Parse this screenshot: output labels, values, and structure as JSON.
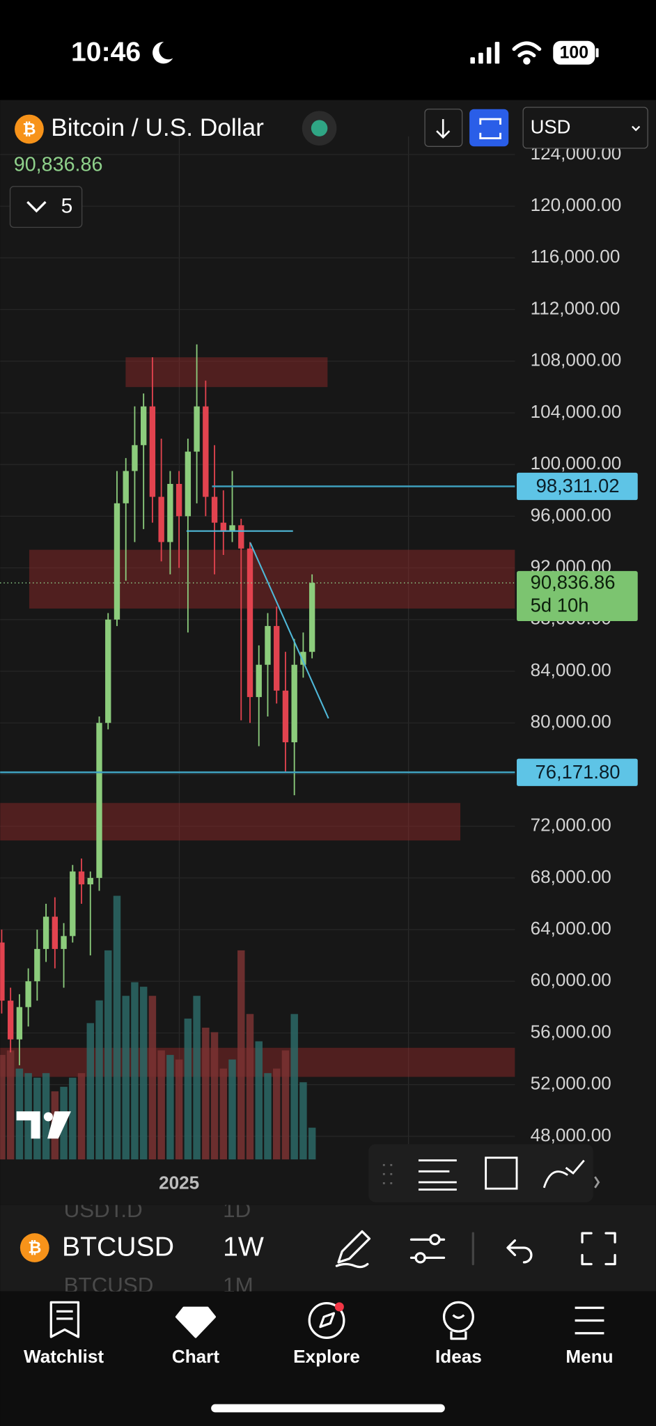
{
  "status_bar": {
    "time": "10:46",
    "battery": "100"
  },
  "header": {
    "title": "Bitcoin / U.S. Dollar",
    "last_price": "90,836.86",
    "indicator_count": "5",
    "currency": "USD"
  },
  "chart_data": {
    "type": "candlestick",
    "categories": [
      null,
      null,
      null,
      null,
      null,
      null,
      null,
      null,
      null,
      null,
      null,
      null,
      null,
      null,
      null,
      null,
      null,
      null,
      null,
      null,
      "2025",
      null,
      null,
      null,
      null,
      null,
      null,
      null,
      null,
      null,
      null,
      null,
      null,
      null,
      null,
      null
    ],
    "open": [
      63000,
      58500,
      55500,
      58000,
      60000,
      62500,
      65000,
      62500,
      63500,
      68500,
      67500,
      68000,
      80000,
      88000,
      97000,
      99500,
      101500,
      104500,
      97500,
      94000,
      98500,
      96000,
      101000,
      104500,
      97500,
      95500,
      94800,
      95300,
      93500,
      82000,
      84500,
      87500,
      82500,
      78500,
      84500,
      85500
    ],
    "high": [
      64000,
      59500,
      59000,
      61000,
      64000,
      66000,
      66500,
      64500,
      69000,
      69500,
      68500,
      80500,
      88500,
      99500,
      100500,
      104500,
      105500,
      108300,
      102000,
      99500,
      99500,
      102000,
      109300,
      106500,
      101500,
      98000,
      99500,
      95800,
      94000,
      86000,
      88500,
      89000,
      85500,
      86500,
      87000,
      91500
    ],
    "low": [
      57500,
      54500,
      53500,
      56500,
      58500,
      61500,
      61000,
      59500,
      63000,
      66000,
      62000,
      67000,
      79500,
      87500,
      91000,
      94000,
      95000,
      95500,
      92500,
      91500,
      92000,
      87000,
      97000,
      96000,
      91500,
      93000,
      94000,
      80200,
      80000,
      78200,
      80500,
      81500,
      76200,
      74400,
      83500,
      85000
    ],
    "close": [
      58500,
      55500,
      58000,
      60000,
      62500,
      65000,
      62500,
      63500,
      68500,
      67500,
      68000,
      80000,
      88000,
      97000,
      99500,
      101500,
      104500,
      97500,
      94000,
      98500,
      96000,
      101000,
      104500,
      97500,
      95500,
      94800,
      95300,
      93500,
      82000,
      84500,
      87500,
      82500,
      78500,
      84500,
      85500,
      90836.86
    ],
    "volume": [
      115,
      120,
      100,
      95,
      90,
      95,
      75,
      80,
      90,
      95,
      150,
      175,
      230,
      290,
      180,
      195,
      190,
      180,
      120,
      115,
      110,
      155,
      180,
      145,
      140,
      100,
      110,
      230,
      160,
      130,
      95,
      100,
      120,
      160,
      85,
      35
    ],
    "volume_ylim": [
      0,
      400
    ],
    "up_color": "#8ccc7c",
    "down_color": "#e2434f",
    "volume_up_color": "#2b6866",
    "volume_down_color": "#7a3232",
    "ylim": [
      46200,
      125400
    ],
    "yticks": [
      {
        "value": 48000,
        "label": "48,000.00"
      },
      {
        "value": 52000,
        "label": "52,000.00"
      },
      {
        "value": 56000,
        "label": "56,000.00"
      },
      {
        "value": 60000,
        "label": "60,000.00"
      },
      {
        "value": 64000,
        "label": "64,000.00"
      },
      {
        "value": 68000,
        "label": "68,000.00"
      },
      {
        "value": 72000,
        "label": "72,000.00"
      },
      {
        "value": 76000,
        "label": "76,000.00"
      },
      {
        "value": 80000,
        "label": "80,000.00"
      },
      {
        "value": 84000,
        "label": "84,000.00"
      },
      {
        "value": 88000,
        "label": "88,000.00"
      },
      {
        "value": 92000,
        "label": "92,000.00"
      },
      {
        "value": 96000,
        "label": "96,000.00"
      },
      {
        "value": 100000,
        "label": "100,000.00"
      },
      {
        "value": 104000,
        "label": "104,000.00"
      },
      {
        "value": 108000,
        "label": "108,000.00"
      },
      {
        "value": 112000,
        "label": "112,000.00"
      },
      {
        "value": 116000,
        "label": "116,000.00"
      },
      {
        "value": 120000,
        "label": "120,000.00"
      },
      {
        "value": 124000,
        "label": "124,000.00"
      }
    ],
    "grid": true,
    "zones": [
      {
        "low": 106000,
        "high": 108300
      },
      {
        "low": 88850,
        "high": 93400
      },
      {
        "low": 70900,
        "high": 73800
      },
      {
        "low": 52600,
        "high": 54850
      }
    ],
    "price_lines": [
      {
        "value": 98311.02,
        "label": "98,311.02"
      },
      {
        "value": 76171.8,
        "label": "76,171.80"
      }
    ],
    "segments": [
      {
        "start": 94850,
        "end": 94850
      },
      {
        "start": 93950,
        "end": 80350
      }
    ],
    "last_price": {
      "value": 90836.86,
      "label": "90,836.86",
      "countdown": "5d 10h"
    }
  },
  "toolbar": {
    "symbol": "BTCUSD",
    "interval": "1W",
    "hidden_symbols": [
      "USDT.D",
      "BTCUSD"
    ],
    "hidden_intervals": [
      "1D",
      "1M"
    ]
  },
  "nav": {
    "tabs": [
      "Watchlist",
      "Chart",
      "Explore",
      "Ideas",
      "Menu"
    ]
  }
}
